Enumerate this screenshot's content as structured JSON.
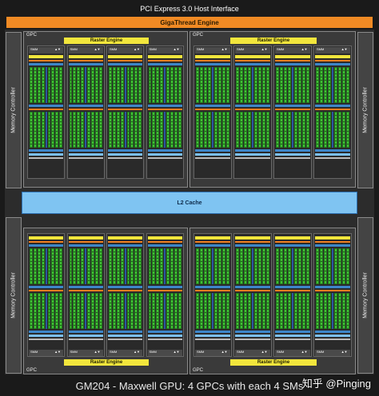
{
  "top": {
    "pcie_label": "PCI Express 3.0 Host Interface",
    "gigathread_label": "GigaThread Engine"
  },
  "memory_controller_label": "Memory Controller",
  "l2_cache_label": "L2 Cache",
  "gpc_label": "GPC",
  "raster_engine_label": "Raster Engine",
  "smm_label": "SMM",
  "caption": "GM204 - Maxwell GPU: 4 GPCs with each 4 SMs",
  "watermark": "知乎 @Pinging",
  "colors": {
    "gigathread": "#f08a24",
    "raster_engine": "#f2e63c",
    "cuda_cores": "#3fbf35",
    "l2_cache": "#7fc4f2",
    "background": "#1a1a1a"
  }
}
